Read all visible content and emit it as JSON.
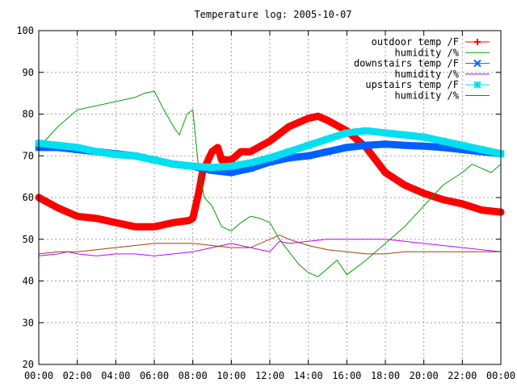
{
  "chart_data": {
    "type": "line",
    "title": "Temperature log: 2005-10-07",
    "xlabel": "",
    "ylabel": "",
    "xlim": [
      0,
      24
    ],
    "ylim": [
      20,
      100
    ],
    "x_ticks": [
      "00:00",
      "02:00",
      "04:00",
      "06:00",
      "08:00",
      "10:00",
      "12:00",
      "14:00",
      "16:00",
      "18:00",
      "20:00",
      "22:00",
      "00:00"
    ],
    "y_ticks": [
      20,
      30,
      40,
      50,
      60,
      70,
      80,
      90,
      100
    ],
    "grid": true,
    "legend_position": "top-right",
    "series": [
      {
        "name": "outdoor temp /F",
        "color": "#ff0000",
        "marker": "plus",
        "x": [
          0,
          1,
          2,
          3,
          4,
          5,
          6,
          7,
          7.8,
          8,
          8.3,
          8.5,
          9,
          9.3,
          9.5,
          10,
          10.5,
          11,
          12,
          13,
          14,
          14.5,
          15,
          16,
          17,
          18,
          19,
          20,
          21,
          22,
          23,
          24
        ],
        "y": [
          60,
          57.5,
          55.5,
          55,
          54,
          53,
          53,
          54,
          54.5,
          55,
          61,
          66,
          71,
          72,
          69,
          69,
          71,
          71,
          73.5,
          77,
          79,
          79.5,
          78.5,
          76,
          72,
          66,
          63,
          61,
          59.5,
          58.5,
          57,
          56.5
        ]
      },
      {
        "name": "humidity /%",
        "color": "#00a000",
        "marker": "none",
        "x": [
          0,
          1,
          2,
          3,
          4,
          5,
          5.5,
          6,
          6.5,
          7,
          7.3,
          7.7,
          8,
          8.3,
          8.6,
          9,
          9.5,
          10,
          10.5,
          11,
          11.5,
          12,
          12.5,
          13,
          13.5,
          14,
          14.5,
          15,
          15.5,
          16,
          17,
          18,
          19,
          20,
          21,
          22,
          22.5,
          23,
          23.5,
          24
        ],
        "y": [
          72,
          77,
          81,
          82,
          83,
          84,
          85,
          85.5,
          81,
          77,
          75,
          80,
          81,
          67,
          60,
          58,
          53,
          52,
          54,
          55.5,
          55,
          54,
          50,
          47,
          44,
          42,
          41,
          43,
          45,
          41.5,
          45,
          49,
          53,
          58,
          63,
          66,
          68,
          67,
          66,
          68
        ]
      },
      {
        "name": "downstairs temp /F",
        "color": "#0060ff",
        "marker": "cross",
        "x": [
          0,
          1,
          2,
          3,
          4,
          5,
          6,
          7,
          8,
          9,
          10,
          11,
          12,
          13,
          14,
          15,
          16,
          17,
          18,
          19,
          20,
          21,
          22,
          23,
          24
        ],
        "y": [
          72,
          72,
          71.5,
          71,
          70.5,
          70,
          69,
          68,
          67.5,
          66.5,
          66,
          67,
          68.5,
          69.5,
          70,
          71,
          72,
          72.5,
          72.8,
          72.5,
          72.3,
          72,
          71.5,
          71,
          70.5
        ]
      },
      {
        "name": "humidity /%",
        "color": "#c000ff",
        "marker": "none",
        "x": [
          0,
          1,
          1.5,
          2,
          3,
          4,
          5,
          6,
          7,
          8,
          9,
          10,
          11,
          11.5,
          12,
          12.5,
          13,
          14,
          15,
          16,
          17,
          18,
          19,
          20,
          21,
          22,
          23,
          24
        ],
        "y": [
          46,
          46.5,
          47,
          46.5,
          46,
          46.5,
          46.5,
          46,
          46.5,
          47,
          48,
          49,
          48,
          47.5,
          47,
          49.5,
          49,
          49.5,
          50,
          50,
          50,
          50,
          49.5,
          49,
          48.5,
          48,
          47.5,
          47
        ]
      },
      {
        "name": "upstairs temp /F",
        "color": "#00e0f0",
        "marker": "star",
        "x": [
          0,
          1,
          2,
          3,
          4,
          5,
          6,
          7,
          8,
          9,
          10,
          11,
          12,
          13,
          14,
          15,
          16,
          17,
          18,
          19,
          20,
          21,
          22,
          23,
          24
        ],
        "y": [
          73,
          72.5,
          72,
          71,
          70.3,
          70,
          69,
          68,
          67.5,
          67.2,
          67.5,
          68.3,
          69.5,
          71,
          72.5,
          74,
          75.5,
          76,
          75.5,
          75,
          74.5,
          73.5,
          72.5,
          71.5,
          70.5
        ]
      },
      {
        "name": "humidity /%",
        "color": "#a04000",
        "marker": "none",
        "x": [
          0,
          1,
          2,
          3,
          4,
          5,
          6,
          7,
          8,
          9,
          10,
          11,
          12,
          12.5,
          13,
          14,
          15,
          16,
          17,
          18,
          19,
          20,
          21,
          22,
          23,
          24
        ],
        "y": [
          46.5,
          47,
          47,
          47.5,
          48,
          48.5,
          49,
          49,
          49,
          48.5,
          48,
          48,
          50,
          51,
          50,
          48.5,
          47.5,
          47,
          46.5,
          46.5,
          47,
          47,
          47,
          47,
          47,
          47
        ]
      }
    ]
  }
}
